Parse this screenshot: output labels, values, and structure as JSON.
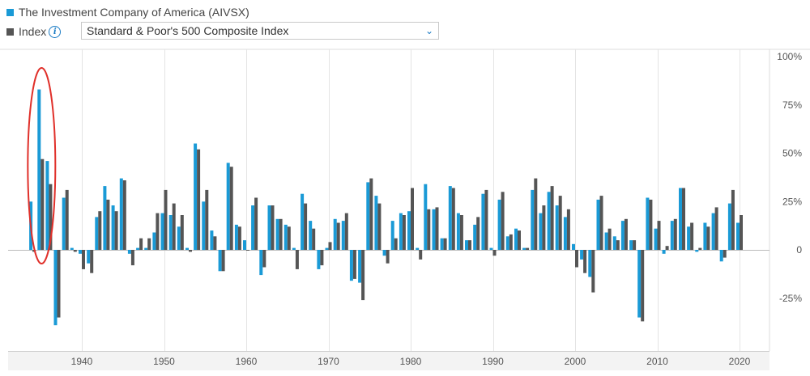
{
  "legend": {
    "fund_label": "The Investment Company of America (AIVSX)",
    "index_label": "Index",
    "index_select_value": "Standard & Poor's 500 Composite Index"
  },
  "colors": {
    "fund": "#1a9ad6",
    "index": "#555555",
    "highlight": "#e0302a"
  },
  "chart_data": {
    "type": "bar",
    "title": "",
    "xlabel": "",
    "ylabel": "",
    "ylim": [
      -0.5,
      1.0
    ],
    "y_ticks": [
      {
        "value": 1.0,
        "label": "100%"
      },
      {
        "value": 0.75,
        "label": "75%"
      },
      {
        "value": 0.5,
        "label": "50%"
      },
      {
        "value": 0.25,
        "label": "25%"
      },
      {
        "value": 0.0,
        "label": "0"
      },
      {
        "value": -0.25,
        "label": "-25%"
      }
    ],
    "x_ticks": [
      1940,
      1950,
      1960,
      1970,
      1980,
      1990,
      2000,
      2010,
      2020
    ],
    "x": [
      1934,
      1935,
      1936,
      1937,
      1938,
      1939,
      1940,
      1941,
      1942,
      1943,
      1944,
      1945,
      1946,
      1947,
      1948,
      1949,
      1950,
      1951,
      1952,
      1953,
      1954,
      1955,
      1956,
      1957,
      1958,
      1959,
      1960,
      1961,
      1962,
      1963,
      1964,
      1965,
      1966,
      1967,
      1968,
      1969,
      1970,
      1971,
      1972,
      1973,
      1974,
      1975,
      1976,
      1977,
      1978,
      1979,
      1980,
      1981,
      1982,
      1983,
      1984,
      1985,
      1986,
      1987,
      1988,
      1989,
      1990,
      1991,
      1992,
      1993,
      1994,
      1995,
      1996,
      1997,
      1998,
      1999,
      2000,
      2001,
      2002,
      2003,
      2004,
      2005,
      2006,
      2007,
      2008,
      2009,
      2010,
      2011,
      2012,
      2013,
      2014,
      2015,
      2016,
      2017,
      2018,
      2019,
      2020
    ],
    "series": [
      {
        "name": "The Investment Company of America (AIVSX)",
        "values": [
          0.25,
          0.83,
          0.46,
          -0.39,
          0.27,
          0.01,
          -0.02,
          -0.07,
          0.17,
          0.33,
          0.23,
          0.37,
          -0.02,
          0.01,
          0.01,
          0.09,
          0.19,
          0.18,
          0.12,
          0.01,
          0.55,
          0.25,
          0.1,
          -0.11,
          0.45,
          0.13,
          0.05,
          0.23,
          -0.13,
          0.23,
          0.16,
          0.13,
          0.01,
          0.29,
          0.15,
          -0.1,
          0.01,
          0.16,
          0.15,
          -0.16,
          -0.17,
          0.35,
          0.28,
          -0.03,
          0.15,
          0.19,
          0.2,
          0.01,
          0.34,
          0.21,
          0.06,
          0.33,
          0.19,
          0.05,
          0.13,
          0.29,
          0.01,
          0.26,
          0.07,
          0.11,
          0.01,
          0.31,
          0.19,
          0.3,
          0.23,
          0.17,
          0.03,
          -0.05,
          -0.14,
          0.26,
          0.09,
          0.07,
          0.15,
          0.05,
          -0.35,
          0.27,
          0.11,
          -0.02,
          0.15,
          0.32,
          0.12,
          -0.01,
          0.14,
          0.19,
          -0.06,
          0.24,
          0.14
        ]
      },
      {
        "name": "Standard & Poor's 500 Composite Index",
        "values": [
          -0.01,
          0.47,
          0.34,
          -0.35,
          0.31,
          -0.01,
          -0.1,
          -0.12,
          0.2,
          0.26,
          0.2,
          0.36,
          -0.08,
          0.06,
          0.06,
          0.19,
          0.31,
          0.24,
          0.18,
          -0.01,
          0.52,
          0.31,
          0.07,
          -0.11,
          0.43,
          0.12,
          0.0,
          0.27,
          -0.09,
          0.23,
          0.16,
          0.12,
          -0.1,
          0.24,
          0.11,
          -0.08,
          0.04,
          0.14,
          0.19,
          -0.15,
          -0.26,
          0.37,
          0.24,
          -0.07,
          0.06,
          0.18,
          0.32,
          -0.05,
          0.21,
          0.22,
          0.06,
          0.32,
          0.18,
          0.05,
          0.17,
          0.31,
          -0.03,
          0.3,
          0.08,
          0.1,
          0.01,
          0.37,
          0.23,
          0.33,
          0.28,
          0.21,
          -0.09,
          -0.12,
          -0.22,
          0.28,
          0.11,
          0.05,
          0.16,
          0.05,
          -0.37,
          0.26,
          0.15,
          0.02,
          0.16,
          0.32,
          0.14,
          0.01,
          0.12,
          0.22,
          -0.04,
          0.31,
          0.18
        ]
      }
    ],
    "annotations": [
      {
        "type": "ellipse",
        "years": [
          1935,
          1936
        ],
        "color": "#e0302a"
      }
    ],
    "grid": "vertical",
    "legend_position": "top-left"
  }
}
